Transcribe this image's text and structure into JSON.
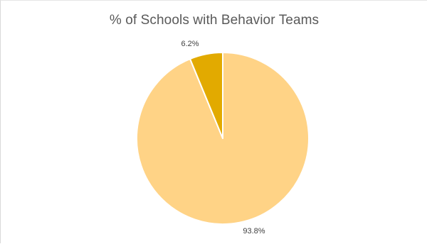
{
  "chart_data": {
    "type": "pie",
    "title": "% of Schools with Behavior Teams",
    "slices": [
      {
        "value": 93.8,
        "label": "93.8%",
        "color": "#ffd386"
      },
      {
        "value": 6.2,
        "label": "6.2%",
        "color": "#e2aa00"
      }
    ],
    "legend": "none",
    "slice_border_color": "#ffffff"
  }
}
